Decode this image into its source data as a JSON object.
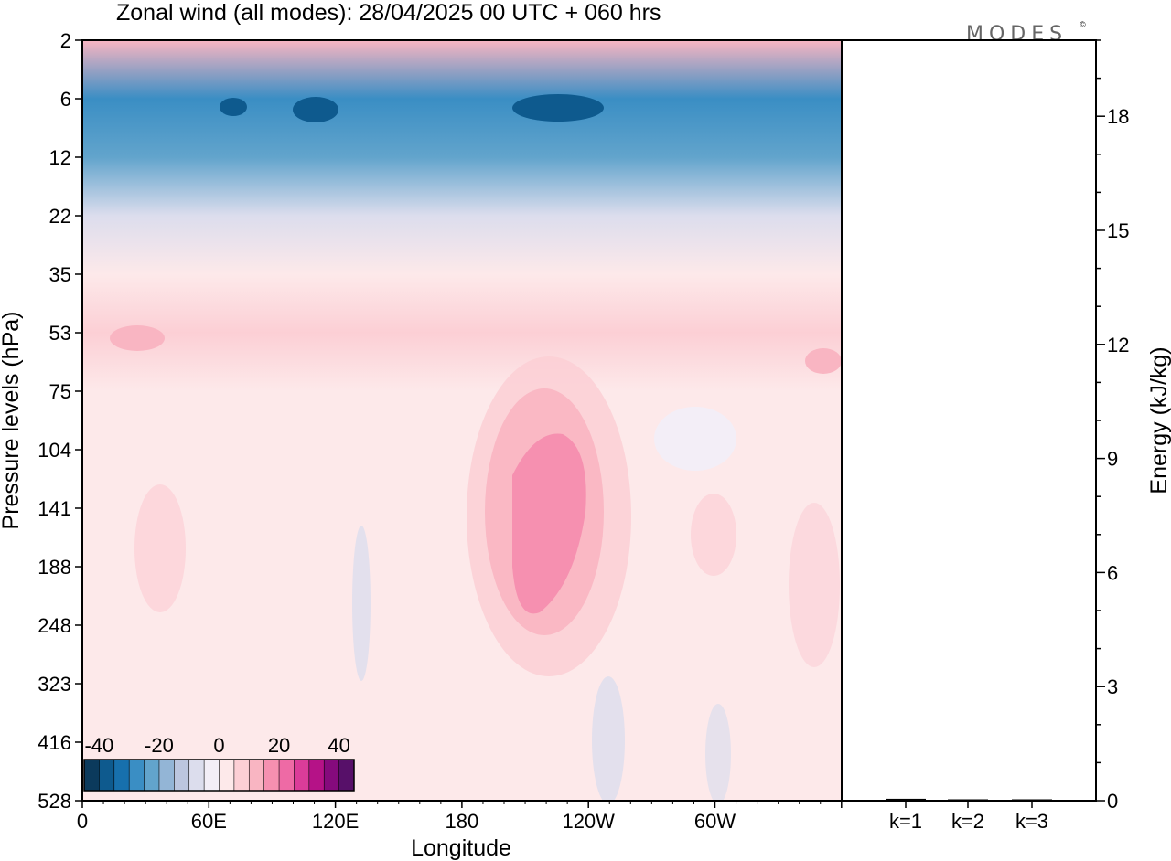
{
  "title": "Zonal wind (all modes):  28/04/2025  00 UTC  + 060 hrs",
  "brand": "MODES",
  "brand_mark": "©",
  "colors": {
    "palette": [
      "#0b3a5c",
      "#0e5a8e",
      "#1770ad",
      "#3a8ec4",
      "#62a4cc",
      "#93b5d6",
      "#bcc6df",
      "#dcdded",
      "#f3eef7",
      "#fde9ea",
      "#fccfd5",
      "#f9b5c2",
      "#f690b0",
      "#ee6aa5",
      "#db3c99",
      "#b51287",
      "#850a7c",
      "#571069"
    ]
  },
  "chart_data": [
    {
      "type": "heatmap",
      "title": "Zonal wind (all modes):  28/04/2025  00 UTC  + 060 hrs",
      "xlabel": "Longitude",
      "ylabel": "Pressure levels (hPa)",
      "x_tick_labels": [
        "0",
        "60E",
        "120E",
        "180",
        "120W",
        "60W"
      ],
      "y_tick_labels": [
        "2",
        "6",
        "12",
        "22",
        "35",
        "53",
        "75",
        "104",
        "141",
        "188",
        "248",
        "323",
        "416",
        "528"
      ],
      "colorbar": {
        "tick_labels": [
          "-40",
          "-20",
          "0",
          "20",
          "40"
        ],
        "range": [
          -45,
          45
        ]
      },
      "rows": [
        {
          "level": "2",
          "value": 10
        },
        {
          "level": "6",
          "value": -30
        },
        {
          "level": "12",
          "value": -25
        },
        {
          "level": "22",
          "value": -10
        },
        {
          "level": "35",
          "value": 0
        },
        {
          "level": "53",
          "value": 8
        },
        {
          "level": "75",
          "value": 3
        },
        {
          "level": "104",
          "value": 1
        },
        {
          "level": "141",
          "value": 2
        },
        {
          "level": "188",
          "value": 2
        },
        {
          "level": "248",
          "value": 1
        },
        {
          "level": "323",
          "value": 0
        },
        {
          "level": "416",
          "value": 0
        },
        {
          "level": "528",
          "value": 0
        }
      ]
    },
    {
      "type": "bar",
      "categories": [
        "k=1",
        "k=2",
        "k=3"
      ],
      "values": [
        0.05,
        0.03,
        0.03
      ],
      "ylabel": "Energy (kJ/kg)",
      "y_tick_labels": [
        "0",
        "3",
        "6",
        "9",
        "12",
        "15",
        "18"
      ],
      "ylim": [
        0,
        20
      ]
    }
  ]
}
